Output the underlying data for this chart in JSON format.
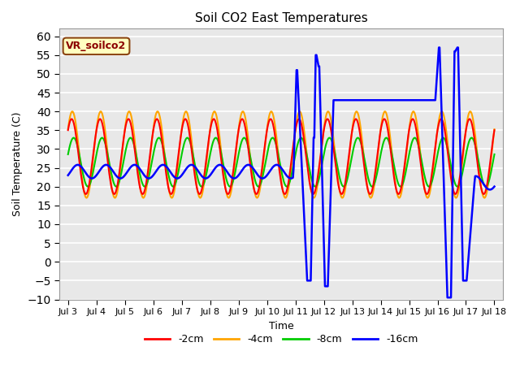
{
  "title": "Soil CO2 East Temperatures",
  "xlabel": "Time",
  "ylabel": "Soil Temperature (C)",
  "xlim": [
    -0.3,
    15.3
  ],
  "ylim": [
    -10,
    62
  ],
  "yticks": [
    -10,
    -5,
    0,
    5,
    10,
    15,
    20,
    25,
    30,
    35,
    40,
    45,
    50,
    55,
    60
  ],
  "xtick_labels": [
    "Jul 3",
    "Jul 4",
    "Jul 5",
    "Jul 6",
    "Jul 7",
    "Jul 8",
    "Jul 9",
    "Jul 10",
    "Jul 11",
    "Jul 12",
    "Jul 13",
    "Jul 14",
    "Jul 15",
    "Jul 16",
    "Jul 17",
    "Jul 18"
  ],
  "xtick_positions": [
    0,
    1,
    2,
    3,
    4,
    5,
    6,
    7,
    8,
    9,
    10,
    11,
    12,
    13,
    14,
    15
  ],
  "colors": {
    "2cm": "#ff0000",
    "4cm": "#ffa500",
    "8cm": "#00cc00",
    "16cm": "#0000ff"
  },
  "line_widths": {
    "2cm": 1.5,
    "4cm": 1.5,
    "8cm": 1.5,
    "16cm": 1.8
  },
  "annotation_text": "VR_soilco2",
  "bg_color": "#e8e8e8"
}
